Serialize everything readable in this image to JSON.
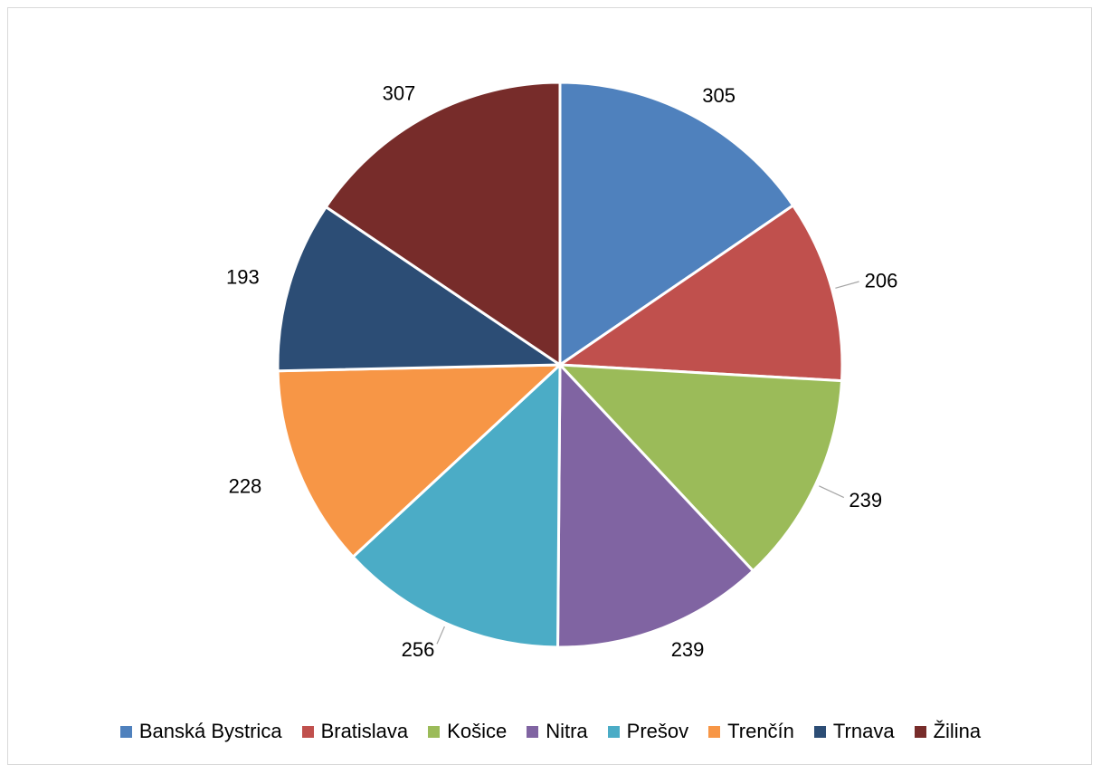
{
  "chart_data": {
    "type": "pie",
    "title": "",
    "categories": [
      "Banská Bystrica",
      "Bratislava",
      "Košice",
      "Nitra",
      "Prešov",
      "Trenčín",
      "Trnava",
      "Žilina"
    ],
    "values": [
      305,
      206,
      239,
      239,
      256,
      228,
      193,
      307
    ],
    "data_labels": [
      "305",
      "206",
      "239",
      "239",
      "256",
      "228",
      "193",
      "307"
    ],
    "colors": [
      "#4f81bd",
      "#c0504d",
      "#9bbb59",
      "#8064a2",
      "#4bacc6",
      "#f79646",
      "#2c4d75",
      "#772c2a"
    ],
    "legend_position": "bottom",
    "start_angle": "top, clockwise"
  }
}
